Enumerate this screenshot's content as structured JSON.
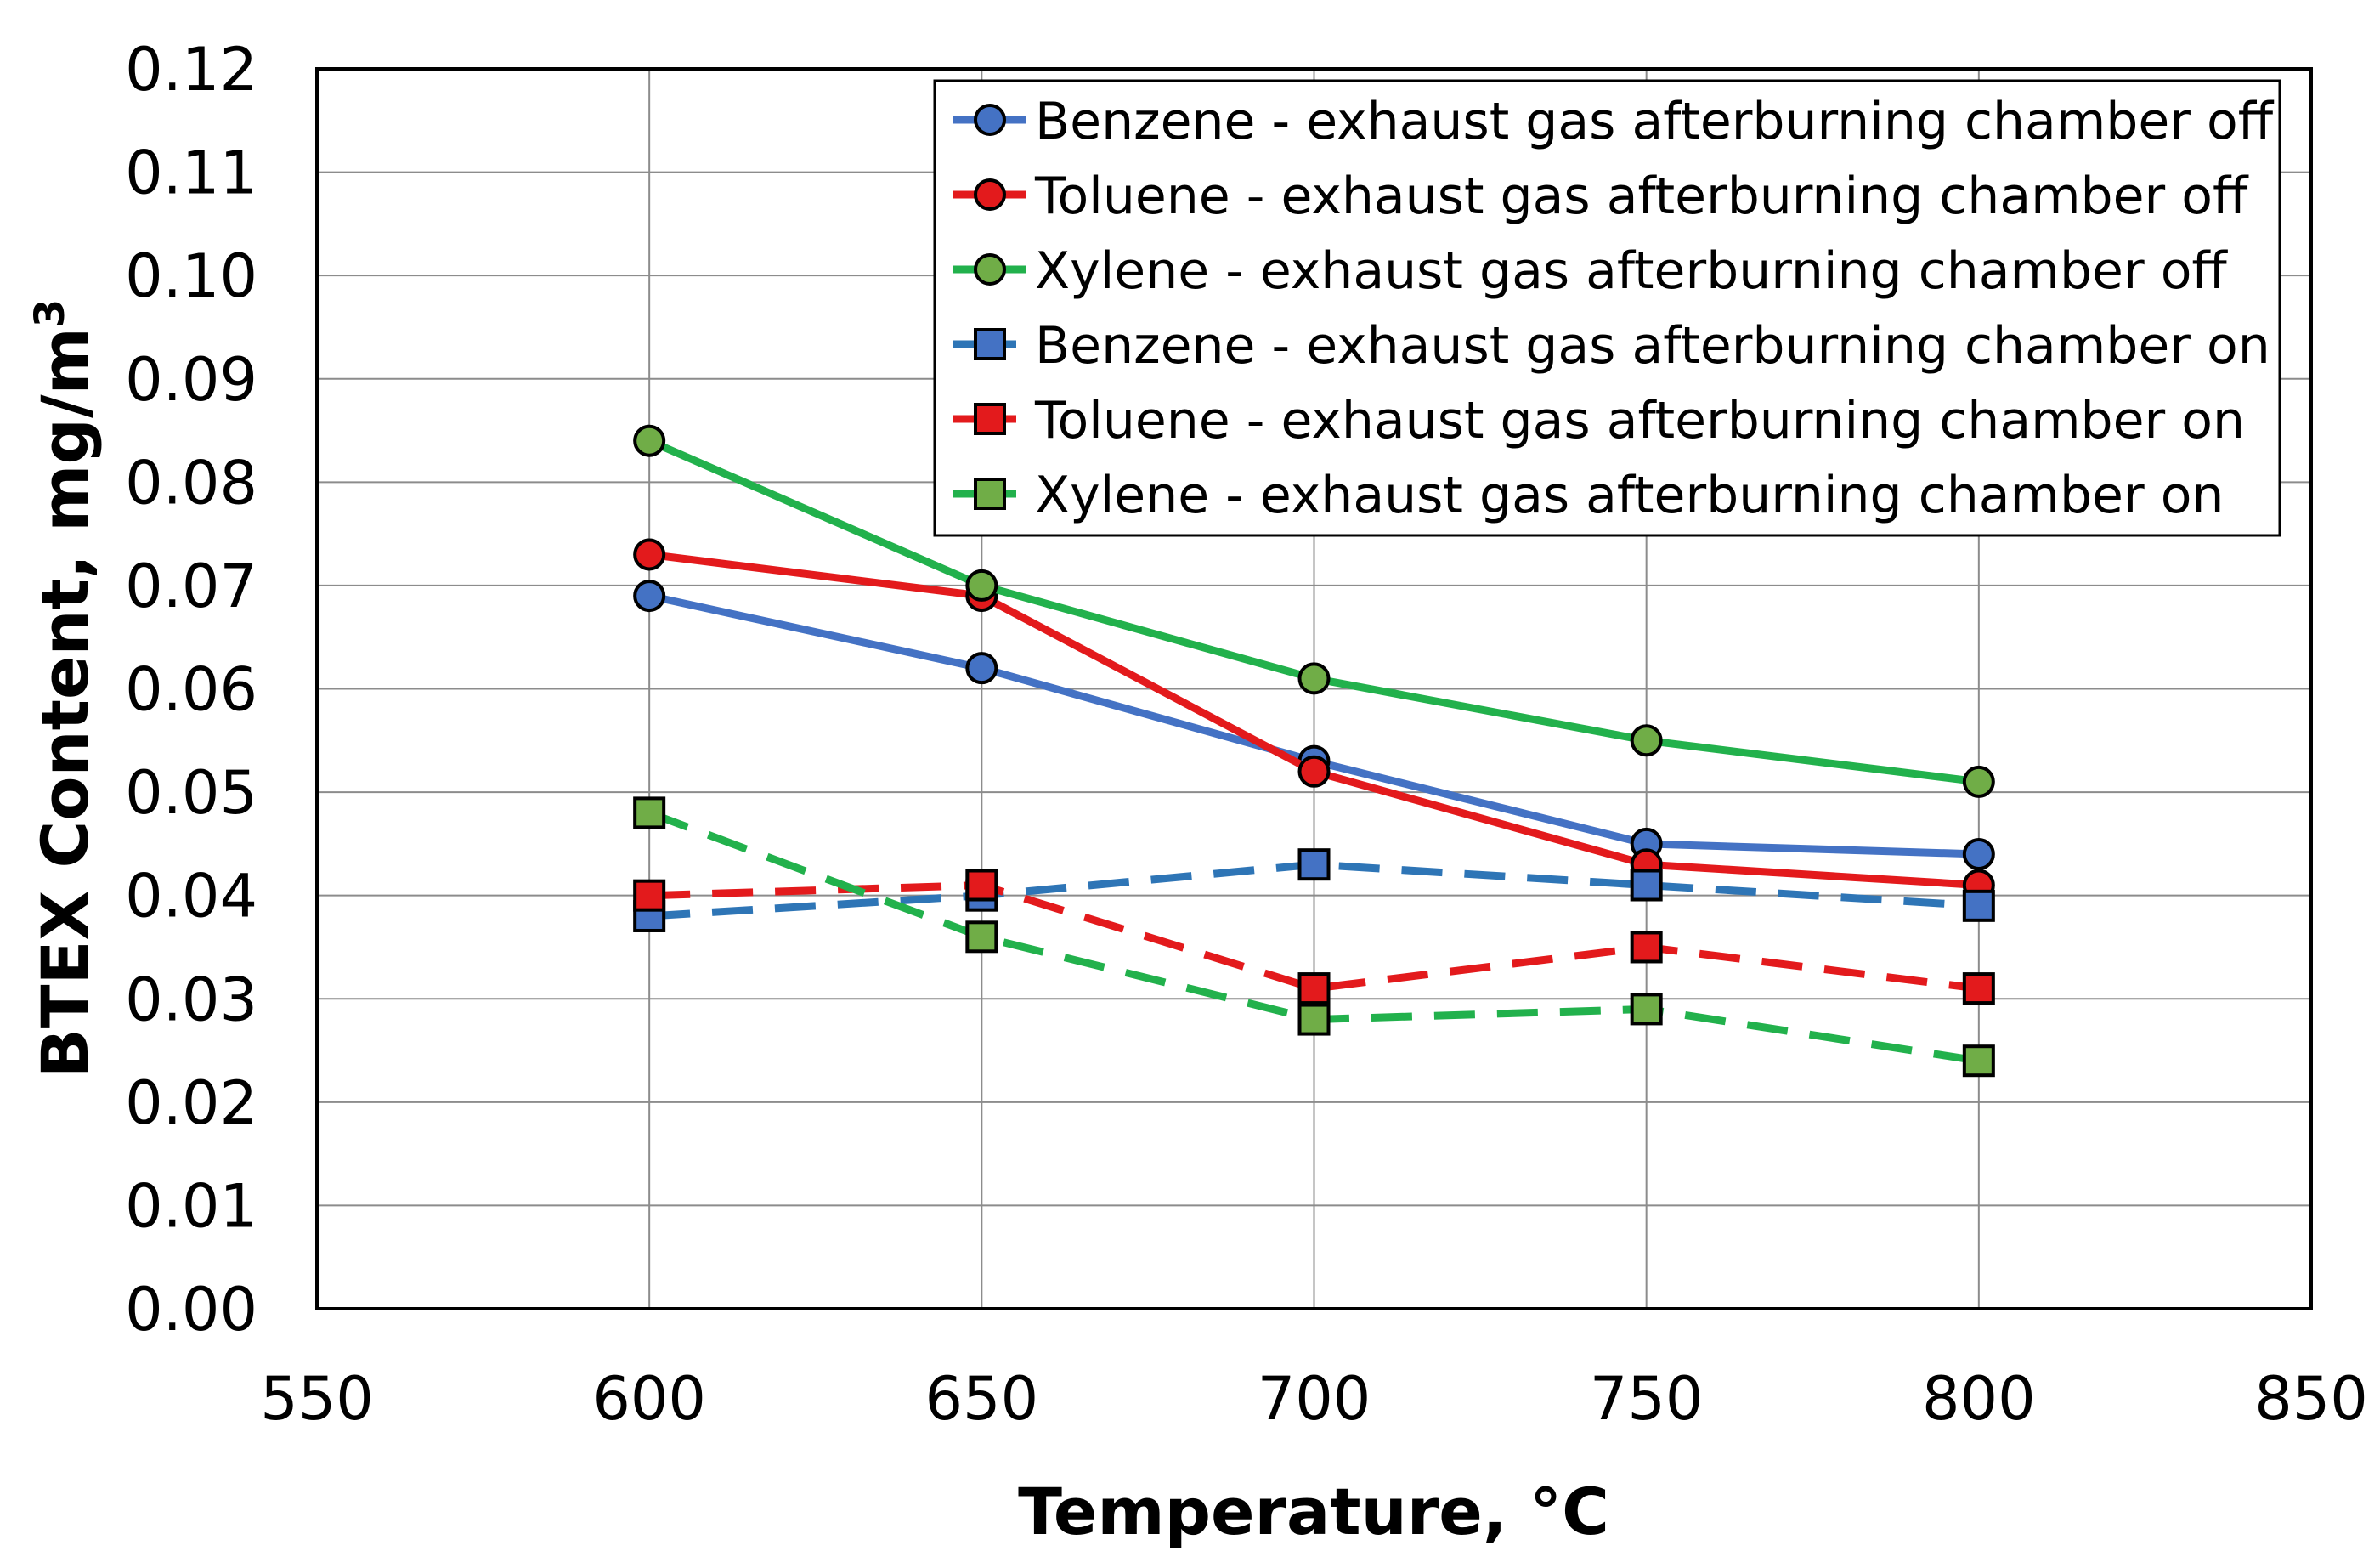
{
  "chart_data": {
    "type": "line",
    "title": "",
    "xlabel": "Temperature, °C",
    "ylabel_main": "BTEX Content, mg/m",
    "ylabel_sup": "3",
    "xlim": [
      550,
      850
    ],
    "ylim": [
      0.0,
      0.12
    ],
    "x_ticks": [
      550,
      600,
      650,
      700,
      750,
      800,
      850
    ],
    "x_tick_labels": [
      "550",
      "600",
      "650",
      "700",
      "750",
      "800",
      "850"
    ],
    "y_ticks": [
      0.0,
      0.01,
      0.02,
      0.03,
      0.04,
      0.05,
      0.06,
      0.07,
      0.08,
      0.09,
      0.1,
      0.11,
      0.12
    ],
    "y_tick_labels": [
      "0.00",
      "0.01",
      "0.02",
      "0.03",
      "0.04",
      "0.05",
      "0.06",
      "0.07",
      "0.08",
      "0.09",
      "0.10",
      "0.11",
      "0.12"
    ],
    "grid": true,
    "legend_position": "top-right",
    "x": [
      600,
      650,
      700,
      750,
      800
    ],
    "series": [
      {
        "name": "Benzene - exhaust gas afterburning chamber off",
        "values": [
          0.069,
          0.062,
          0.053,
          0.045,
          0.044
        ],
        "line_color": "#4472C4",
        "marker_fill": "#4472C4",
        "marker": "circle",
        "dashed": false
      },
      {
        "name": "Toluene - exhaust gas afterburning chamber off",
        "values": [
          0.073,
          0.069,
          0.052,
          0.043,
          0.041
        ],
        "line_color": "#E31A1C",
        "marker_fill": "#E31A1C",
        "marker": "circle",
        "dashed": false
      },
      {
        "name": "Xylene - exhaust gas afterburning chamber off",
        "values": [
          0.084,
          0.07,
          0.061,
          0.055,
          0.051
        ],
        "line_color": "#22B14C",
        "marker_fill": "#70AD47",
        "marker": "circle",
        "dashed": false
      },
      {
        "name": "Benzene - exhaust gas afterburning chamber on",
        "values": [
          0.038,
          0.04,
          0.043,
          0.041,
          0.039
        ],
        "line_color": "#2E75B6",
        "marker_fill": "#4472C4",
        "marker": "square",
        "dashed": true
      },
      {
        "name": "Toluene - exhaust gas afterburning chamber on",
        "values": [
          0.04,
          0.041,
          0.031,
          0.035,
          0.031
        ],
        "line_color": "#E31A1C",
        "marker_fill": "#E31A1C",
        "marker": "square",
        "dashed": true
      },
      {
        "name": "Xylene - exhaust gas afterburning chamber on",
        "values": [
          0.048,
          0.036,
          0.028,
          0.029,
          0.024
        ],
        "line_color": "#22B14C",
        "marker_fill": "#70AD47",
        "marker": "square",
        "dashed": true
      }
    ]
  }
}
